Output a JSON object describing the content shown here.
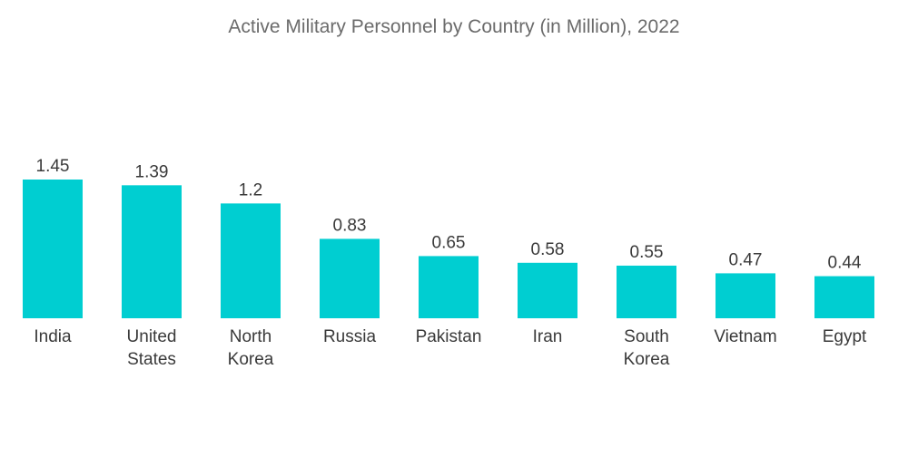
{
  "chart_data": {
    "type": "bar",
    "title": "Active Military Personnel by Country (in Million), 2022",
    "categories": [
      [
        "India"
      ],
      [
        "United",
        "States"
      ],
      [
        "North",
        "Korea"
      ],
      [
        "Russia"
      ],
      [
        "Pakistan"
      ],
      [
        "Iran"
      ],
      [
        "South",
        "Korea"
      ],
      [
        "Vietnam"
      ],
      [
        "Egypt"
      ]
    ],
    "values": [
      1.45,
      1.39,
      1.2,
      0.83,
      0.65,
      0.58,
      0.55,
      0.47,
      0.44
    ],
    "value_labels": [
      "1.45",
      "1.39",
      "1.2",
      "0.83",
      "0.65",
      "0.58",
      "0.55",
      "0.47",
      "0.44"
    ],
    "xlabel": "",
    "ylabel": "",
    "ylim": [
      0,
      1.45
    ],
    "grid": false,
    "bar_color": "#00CED1"
  }
}
